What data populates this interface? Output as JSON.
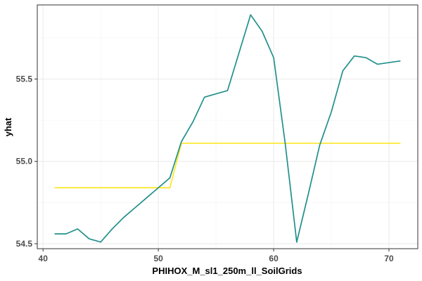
{
  "chart_data": {
    "type": "line",
    "title": "",
    "xlabel": "PHIHOX_M_sl1_250m_ll_SoilGrids",
    "ylabel": "yhat",
    "xlim": [
      39.5,
      72.5
    ],
    "ylim": [
      54.47,
      55.95
    ],
    "x_ticks": [
      40,
      50,
      60,
      70
    ],
    "y_ticks": [
      54.5,
      55.0,
      55.5
    ],
    "y_tick_labels": [
      "54.5",
      "55.0",
      "55.5"
    ],
    "grid": true,
    "legend": "none",
    "series": [
      {
        "color": "#21908C",
        "x": [
          41,
          42,
          43,
          44,
          45,
          46,
          47,
          48,
          49,
          50,
          51,
          52,
          53,
          54,
          55,
          56,
          57,
          58,
          59,
          60,
          61,
          62,
          63,
          64,
          65,
          66,
          67,
          68,
          69,
          70,
          71
        ],
        "y": [
          54.56,
          54.56,
          54.59,
          54.53,
          54.51,
          54.59,
          54.66,
          54.72,
          54.78,
          54.84,
          54.9,
          55.12,
          55.24,
          55.39,
          55.41,
          55.43,
          55.66,
          55.89,
          55.79,
          55.63,
          55.11,
          54.51,
          54.8,
          55.1,
          55.3,
          55.55,
          55.64,
          55.63,
          55.59,
          55.6,
          55.61
        ]
      },
      {
        "color": "#FDE725",
        "x": [
          41,
          51,
          52,
          71
        ],
        "y": [
          54.84,
          54.84,
          55.11,
          55.11
        ]
      }
    ]
  }
}
